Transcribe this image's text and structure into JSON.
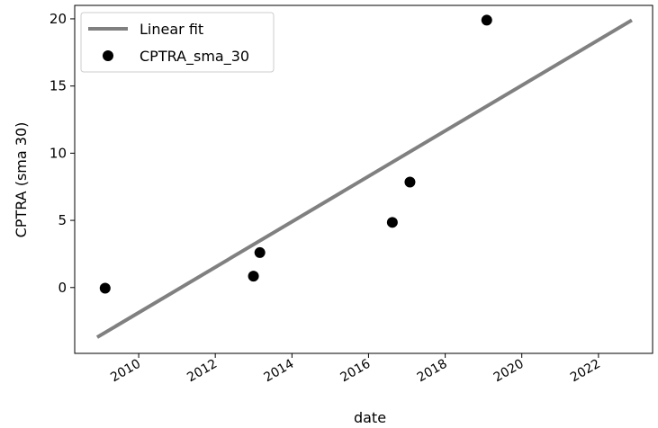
{
  "chart_data": {
    "type": "scatter",
    "xlabel": "date",
    "ylabel": "CPTRA (sma 30)",
    "xlim": [
      "2008-05-01",
      "2023-06-01"
    ],
    "ylim": [
      -4.9,
      21.0
    ],
    "x_ticks": [
      "2010",
      "2012",
      "2014",
      "2016",
      "2018",
      "2020",
      "2022"
    ],
    "y_ticks": [
      "0",
      "5",
      "10",
      "15",
      "20"
    ],
    "x_tick_dates": [
      "2010-01-01",
      "2012-01-01",
      "2014-01-01",
      "2016-01-01",
      "2018-01-01",
      "2020-01-01",
      "2022-01-01"
    ],
    "y_tick_values": [
      0,
      5,
      10,
      15,
      20
    ],
    "grid": false,
    "legend_position": "top-left",
    "series": [
      {
        "name": "Linear fit",
        "kind": "line",
        "color": "#808080",
        "x": [
          "2008-12-01",
          "2022-11-15"
        ],
        "y": [
          -3.7,
          19.9
        ]
      },
      {
        "name": "CPTRA_sma_30",
        "kind": "scatter",
        "color": "#000000",
        "x": [
          "2009-02-15",
          "2012-12-30",
          "2013-03-01",
          "2016-08-15",
          "2017-01-30",
          "2019-02-01"
        ],
        "y": [
          -0.05,
          0.85,
          2.6,
          4.85,
          7.85,
          19.9
        ]
      }
    ]
  }
}
